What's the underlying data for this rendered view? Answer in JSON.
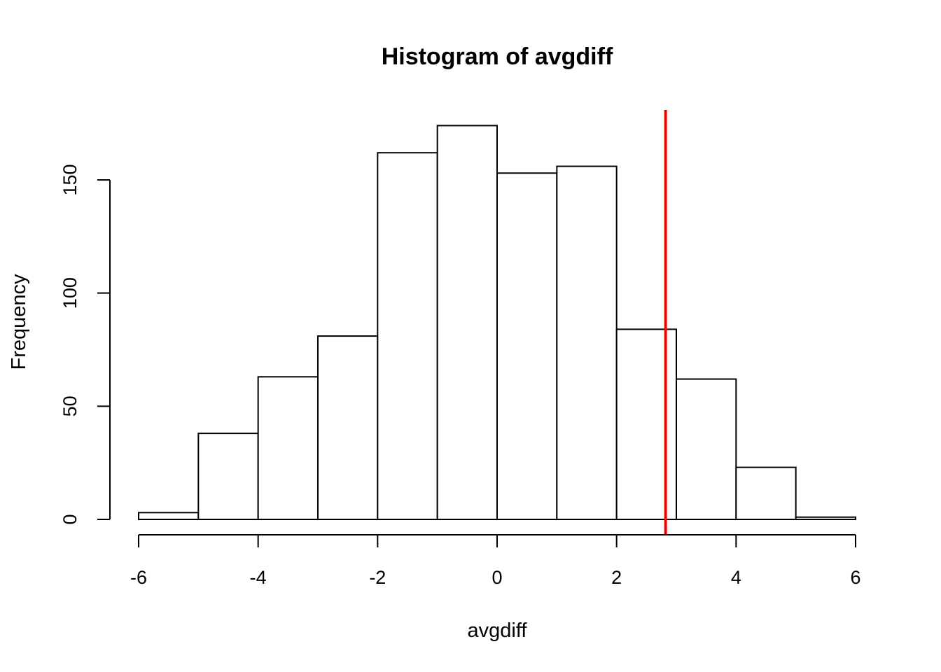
{
  "chart_data": {
    "type": "histogram",
    "title": "Histogram of avgdiff",
    "xlabel": "avgdiff",
    "ylabel": "Frequency",
    "bins": [
      {
        "start": -6,
        "end": -5,
        "count": 3
      },
      {
        "start": -5,
        "end": -4,
        "count": 38
      },
      {
        "start": -4,
        "end": -3,
        "count": 63
      },
      {
        "start": -3,
        "end": -2,
        "count": 81
      },
      {
        "start": -2,
        "end": -1,
        "count": 162
      },
      {
        "start": -1,
        "end": 0,
        "count": 174
      },
      {
        "start": 0,
        "end": 1,
        "count": 153
      },
      {
        "start": 1,
        "end": 2,
        "count": 156
      },
      {
        "start": 2,
        "end": 3,
        "count": 84
      },
      {
        "start": 3,
        "end": 4,
        "count": 62
      },
      {
        "start": 4,
        "end": 5,
        "count": 23
      },
      {
        "start": 5,
        "end": 6,
        "count": 1
      }
    ],
    "xticks": [
      -6,
      -4,
      -2,
      0,
      2,
      4,
      6
    ],
    "yticks": [
      0,
      50,
      100,
      150
    ],
    "xlim": [
      -6,
      6
    ],
    "reference_line": {
      "x": 2.82,
      "color": "#ff0000"
    },
    "grid": false,
    "bar_fill": "#ffffff",
    "bar_stroke": "#000000"
  }
}
